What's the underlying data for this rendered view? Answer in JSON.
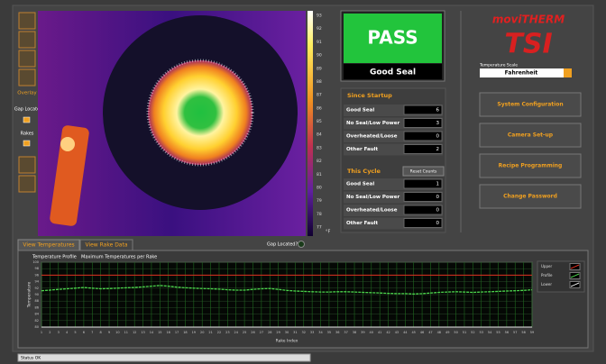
{
  "toolbar": {
    "overlay": "Overlay",
    "gap_locate": "Gap Locate",
    "rakes": "Rakes"
  },
  "color_scale": {
    "ticks": [
      93,
      92,
      91,
      90,
      89,
      88,
      87,
      86,
      85,
      84,
      83,
      82,
      81,
      80,
      79,
      78,
      77
    ],
    "unit": "°F"
  },
  "result": {
    "status": "PASS",
    "label": "Good Seal"
  },
  "since_startup": {
    "title": "Since Startup",
    "rows": [
      [
        "Good Seal",
        6
      ],
      [
        "No Seal/Low Power",
        3
      ],
      [
        "Overheated/Loose",
        0
      ],
      [
        "Other Fault",
        2
      ]
    ]
  },
  "this_cycle": {
    "title": "This Cycle",
    "reset": "Reset Counts",
    "rows": [
      [
        "Good Seal",
        1
      ],
      [
        "No Seal/Low Power",
        0
      ],
      [
        "Overheated/Loose",
        0
      ],
      [
        "Other Fault",
        0
      ]
    ]
  },
  "logo": {
    "brand": "moviTHERM",
    "product": "TSI"
  },
  "temperature_scale": {
    "label": "Temperature Scale",
    "value": "Fahrenheit"
  },
  "buttons": [
    "System Configuration",
    "Camera Set-up",
    "Recipe Programming",
    "Change Password"
  ],
  "gap_located": "Gap Located?",
  "tabs": [
    "View Temperatures",
    "View Rake Data"
  ],
  "chart_data": {
    "type": "line",
    "title": "Temperature Profile",
    "subtitle": "Maximum Temperatures per Rake",
    "x_label": "Rake Index",
    "y_label": "Temperature",
    "x": [
      1,
      2,
      3,
      4,
      5,
      6,
      7,
      8,
      9,
      10,
      11,
      12,
      13,
      14,
      15,
      16,
      17,
      18,
      19,
      20,
      21,
      22,
      23,
      24,
      25,
      26,
      27,
      28,
      29,
      30,
      31,
      32,
      33,
      34,
      35,
      36,
      37,
      38,
      39,
      40,
      41,
      42,
      43,
      44,
      45,
      46,
      47,
      48,
      49,
      50,
      51,
      52,
      53,
      54,
      55,
      56,
      57,
      58,
      59
    ],
    "xlim": [
      1,
      59
    ],
    "ylim": [
      80,
      100
    ],
    "yticks": [
      80,
      82,
      84,
      86,
      88,
      90,
      92,
      94,
      96,
      98,
      100
    ],
    "grid": true,
    "reference_lines": [
      {
        "name": "Upper",
        "color": "#e03020",
        "value": 96
      },
      {
        "name": "Lower",
        "color": "#e8e8e8",
        "value": 80
      }
    ],
    "series": [
      {
        "name": "Profile",
        "color": "#4cd44c",
        "values": [
          91.2,
          91.4,
          91.6,
          91.8,
          92.0,
          92.2,
          92.0,
          91.8,
          91.9,
          92.0,
          92.1,
          92.2,
          92.4,
          92.6,
          92.8,
          92.6,
          92.3,
          92.1,
          92.0,
          91.9,
          91.8,
          91.7,
          91.5,
          91.4,
          91.4,
          91.6,
          91.8,
          91.9,
          91.6,
          91.3,
          91.1,
          91.0,
          90.9,
          90.8,
          90.8,
          90.9,
          90.9,
          90.8,
          90.7,
          90.6,
          90.5,
          90.4,
          90.3,
          90.3,
          90.2,
          90.3,
          90.5,
          90.7,
          90.8,
          90.9,
          90.8,
          90.7,
          90.8,
          90.9,
          91.0,
          91.1,
          91.2,
          91.3,
          91.5
        ]
      }
    ]
  },
  "status": "Status OK"
}
